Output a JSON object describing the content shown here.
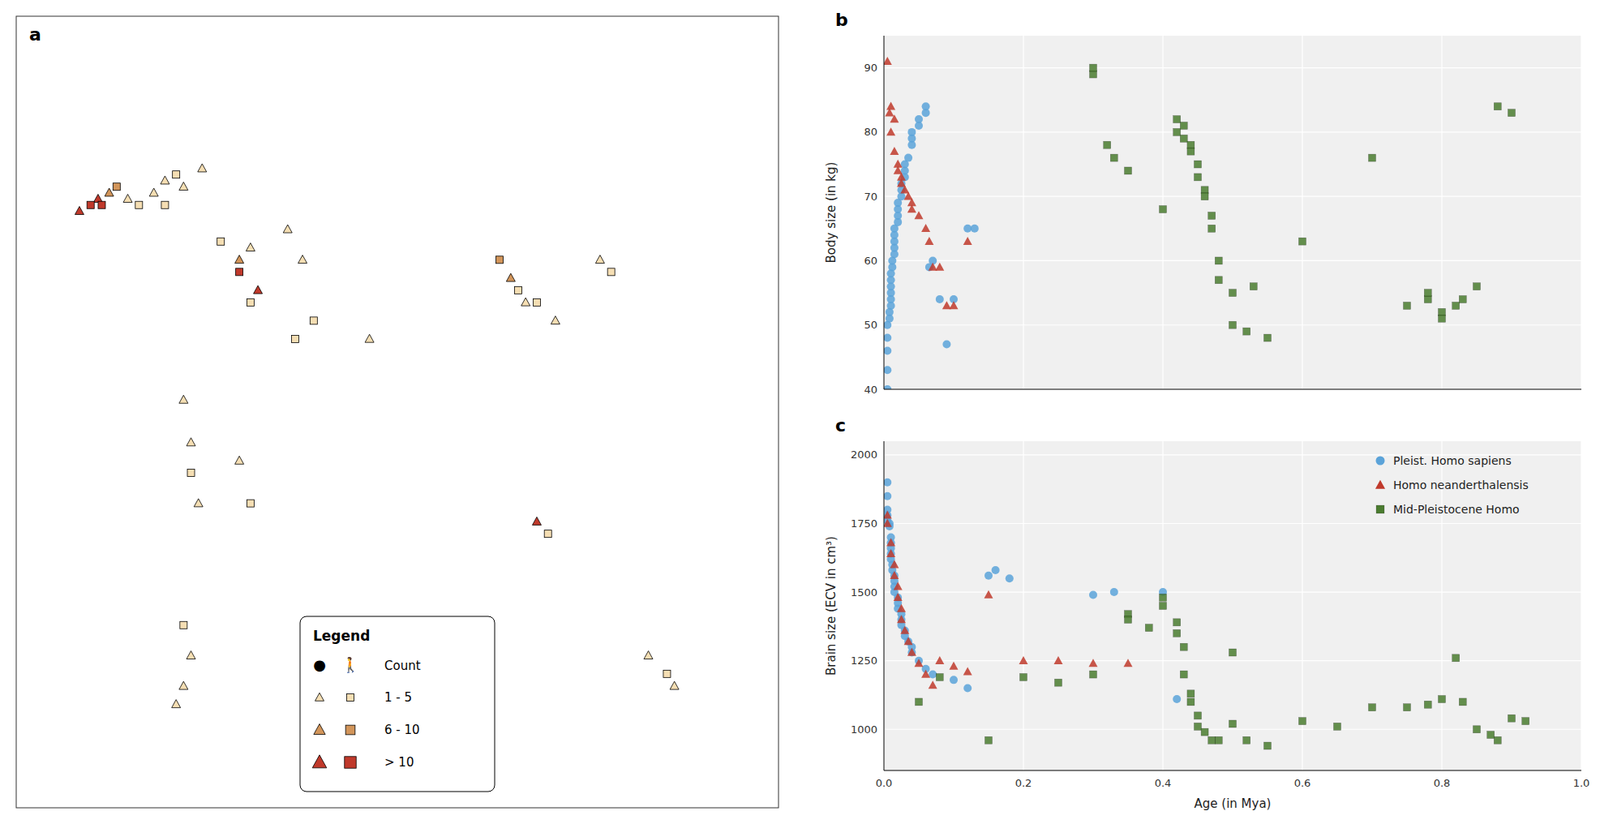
{
  "chart_data": [
    {
      "type": "scatter",
      "title": "a",
      "xlim": [
        -25,
        180
      ],
      "ylim": [
        -55,
        75
      ],
      "tick_labels": false,
      "legend": "lower center",
      "annotations": [
        "Legend",
        "●",
        "🚶",
        "Count"
      ],
      "series": [
        {
          "name": "1 - 5",
          "color": "#f5deb3",
          "marker": "triangle",
          "x": [
            5,
            12,
            15,
            20,
            25,
            38,
            48,
            52,
            20,
            22,
            24,
            22,
            20,
            18,
            35,
            70,
            112,
            120,
            132,
            145,
            152
          ],
          "values": [
            45,
            46,
            48,
            47,
            50,
            37,
            40,
            35,
            12,
            5,
            -5,
            -30,
            -35,
            -38,
            2,
            22,
            28,
            25,
            35,
            -30,
            -35
          ]
        },
        {
          "name": "1 - 5",
          "color": "#f5deb3",
          "marker": "square",
          "x": [
            8,
            15,
            18,
            30,
            38,
            50,
            55,
            22,
            20,
            38,
            110,
            115,
            135,
            118,
            150
          ],
          "values": [
            44,
            44,
            49,
            38,
            28,
            22,
            25,
            0,
            -25,
            -5,
            30,
            28,
            33,
            -10,
            -33
          ]
        },
        {
          "name": "6 - 10",
          "color": "#d2955a",
          "marker": "triangle",
          "x": [
            0,
            35,
            108
          ],
          "values": [
            46,
            35,
            32
          ]
        },
        {
          "name": "6 - 10",
          "color": "#d2955a",
          "marker": "square",
          "x": [
            2,
            105
          ],
          "values": [
            47,
            35
          ]
        },
        {
          "name": "> 10",
          "color": "#c0392b",
          "marker": "triangle",
          "x": [
            -8,
            -3,
            40,
            115
          ],
          "values": [
            43,
            45,
            30,
            -8
          ]
        },
        {
          "name": "> 10",
          "color": "#c0392b",
          "marker": "square",
          "x": [
            -5,
            -2,
            35
          ],
          "values": [
            44,
            44,
            33
          ]
        }
      ]
    },
    {
      "type": "scatter",
      "title": "b",
      "ylabel": "Body size (in kg)",
      "xlim": [
        0,
        1.0
      ],
      "ylim": [
        40,
        95
      ],
      "xticks": [
        0.0,
        0.2,
        0.4,
        0.6,
        0.8,
        1.0
      ],
      "yticks": [
        40,
        50,
        60,
        70,
        80,
        90
      ],
      "grid": true,
      "tick_labels": "y",
      "series": [
        {
          "color": "#5ba3d9",
          "marker": "circle",
          "x": [
            0.005,
            0.005,
            0.005,
            0.005,
            0.005,
            0.008,
            0.008,
            0.01,
            0.01,
            0.01,
            0.01,
            0.01,
            0.01,
            0.012,
            0.012,
            0.015,
            0.015,
            0.015,
            0.015,
            0.015,
            0.02,
            0.02,
            0.02,
            0.02,
            0.025,
            0.025,
            0.025,
            0.03,
            0.03,
            0.03,
            0.035,
            0.04,
            0.04,
            0.04,
            0.05,
            0.05,
            0.06,
            0.06,
            0.065,
            0.07,
            0.08,
            0.09,
            0.1,
            0.12,
            0.13
          ],
          "values": [
            40,
            43,
            46,
            48,
            50,
            51,
            52,
            53,
            54,
            55,
            56,
            57,
            58,
            59,
            60,
            61,
            62,
            63,
            64,
            65,
            66,
            67,
            68,
            69,
            70,
            71,
            72,
            73,
            74,
            75,
            76,
            78,
            79,
            80,
            81,
            82,
            83,
            84,
            59,
            60,
            54,
            47,
            54,
            65,
            65
          ]
        },
        {
          "color": "#c0392b",
          "marker": "triangle",
          "x": [
            0.005,
            0.008,
            0.01,
            0.01,
            0.015,
            0.015,
            0.02,
            0.02,
            0.025,
            0.025,
            0.03,
            0.035,
            0.04,
            0.04,
            0.05,
            0.06,
            0.065,
            0.07,
            0.08,
            0.09,
            0.1,
            0.12
          ],
          "values": [
            91,
            83,
            84,
            80,
            82,
            77,
            75,
            74,
            73,
            72,
            71,
            70,
            69,
            68,
            67,
            65,
            63,
            59,
            59,
            53,
            53,
            63
          ]
        },
        {
          "color": "#4a7c2f",
          "marker": "square",
          "x": [
            0.3,
            0.3,
            0.32,
            0.33,
            0.35,
            0.4,
            0.42,
            0.42,
            0.43,
            0.43,
            0.44,
            0.44,
            0.45,
            0.45,
            0.46,
            0.46,
            0.47,
            0.47,
            0.48,
            0.48,
            0.5,
            0.5,
            0.52,
            0.53,
            0.55,
            0.6,
            0.7,
            0.75,
            0.78,
            0.78,
            0.8,
            0.8,
            0.82,
            0.83,
            0.85,
            0.88,
            0.9
          ],
          "values": [
            89,
            90,
            78,
            76,
            74,
            68,
            80,
            82,
            81,
            79,
            78,
            77,
            75,
            73,
            71,
            70,
            67,
            65,
            60,
            57,
            55,
            50,
            49,
            56,
            48,
            63,
            76,
            53,
            54,
            55,
            52,
            51,
            53,
            54,
            56,
            84,
            83
          ]
        }
      ]
    },
    {
      "type": "scatter",
      "title": "c",
      "xlabel": "Age (in Mya)",
      "ylabel": "Brain size (ECV in cm³)",
      "xlim": [
        0,
        1.0
      ],
      "ylim": [
        850,
        2050
      ],
      "xticks": [
        {
          "value": 0.0,
          "label": "0.0"
        },
        0.2,
        0.4,
        0.6,
        0.8,
        {
          "value": 1.0,
          "label": "1.0"
        }
      ],
      "yticks": [
        1000,
        1250,
        1500,
        1750,
        2000
      ],
      "grid": true,
      "legend": "upper right",
      "series": [
        {
          "name": "Pleist. Homo sapiens",
          "color": "#5ba3d9",
          "marker": "circle",
          "x": [
            0.005,
            0.005,
            0.005,
            0.005,
            0.005,
            0.008,
            0.008,
            0.01,
            0.01,
            0.01,
            0.01,
            0.01,
            0.012,
            0.012,
            0.015,
            0.015,
            0.015,
            0.015,
            0.02,
            0.02,
            0.02,
            0.025,
            0.025,
            0.025,
            0.03,
            0.03,
            0.035,
            0.04,
            0.04,
            0.05,
            0.06,
            0.07,
            0.1,
            0.12,
            0.15,
            0.16,
            0.18,
            0.3,
            0.33,
            0.4,
            0.42
          ],
          "values": [
            1900,
            1850,
            1800,
            1780,
            1760,
            1750,
            1740,
            1700,
            1680,
            1660,
            1640,
            1620,
            1600,
            1580,
            1560,
            1540,
            1520,
            1500,
            1480,
            1460,
            1440,
            1420,
            1400,
            1380,
            1360,
            1340,
            1320,
            1300,
            1280,
            1250,
            1220,
            1200,
            1180,
            1150,
            1560,
            1580,
            1550,
            1490,
            1500,
            1500,
            1110
          ]
        },
        {
          "name": "Homo neanderthalensis",
          "color": "#c0392b",
          "marker": "triangle",
          "x": [
            0.005,
            0.005,
            0.01,
            0.01,
            0.015,
            0.015,
            0.02,
            0.02,
            0.025,
            0.025,
            0.03,
            0.035,
            0.04,
            0.05,
            0.06,
            0.07,
            0.08,
            0.1,
            0.12,
            0.15,
            0.2,
            0.25,
            0.3,
            0.35
          ],
          "values": [
            1780,
            1750,
            1680,
            1640,
            1600,
            1560,
            1520,
            1480,
            1440,
            1400,
            1360,
            1320,
            1280,
            1240,
            1200,
            1160,
            1250,
            1230,
            1210,
            1490,
            1250,
            1250,
            1240,
            1240
          ]
        },
        {
          "name": "Mid-Pleistocene Homo",
          "color": "#4a7c2f",
          "marker": "square",
          "x": [
            0.05,
            0.08,
            0.15,
            0.2,
            0.25,
            0.3,
            0.35,
            0.35,
            0.38,
            0.4,
            0.4,
            0.42,
            0.42,
            0.43,
            0.43,
            0.44,
            0.44,
            0.45,
            0.45,
            0.46,
            0.47,
            0.48,
            0.5,
            0.5,
            0.52,
            0.55,
            0.6,
            0.65,
            0.7,
            0.75,
            0.78,
            0.8,
            0.82,
            0.83,
            0.85,
            0.87,
            0.88,
            0.9,
            0.92
          ],
          "values": [
            1100,
            1190,
            960,
            1190,
            1170,
            1200,
            1420,
            1400,
            1370,
            1480,
            1450,
            1390,
            1350,
            1300,
            1200,
            1130,
            1100,
            1050,
            1010,
            990,
            960,
            960,
            1280,
            1020,
            960,
            940,
            1030,
            1010,
            1080,
            1080,
            1090,
            1110,
            1260,
            1100,
            1000,
            980,
            960,
            1040,
            1030
          ]
        }
      ]
    }
  ]
}
